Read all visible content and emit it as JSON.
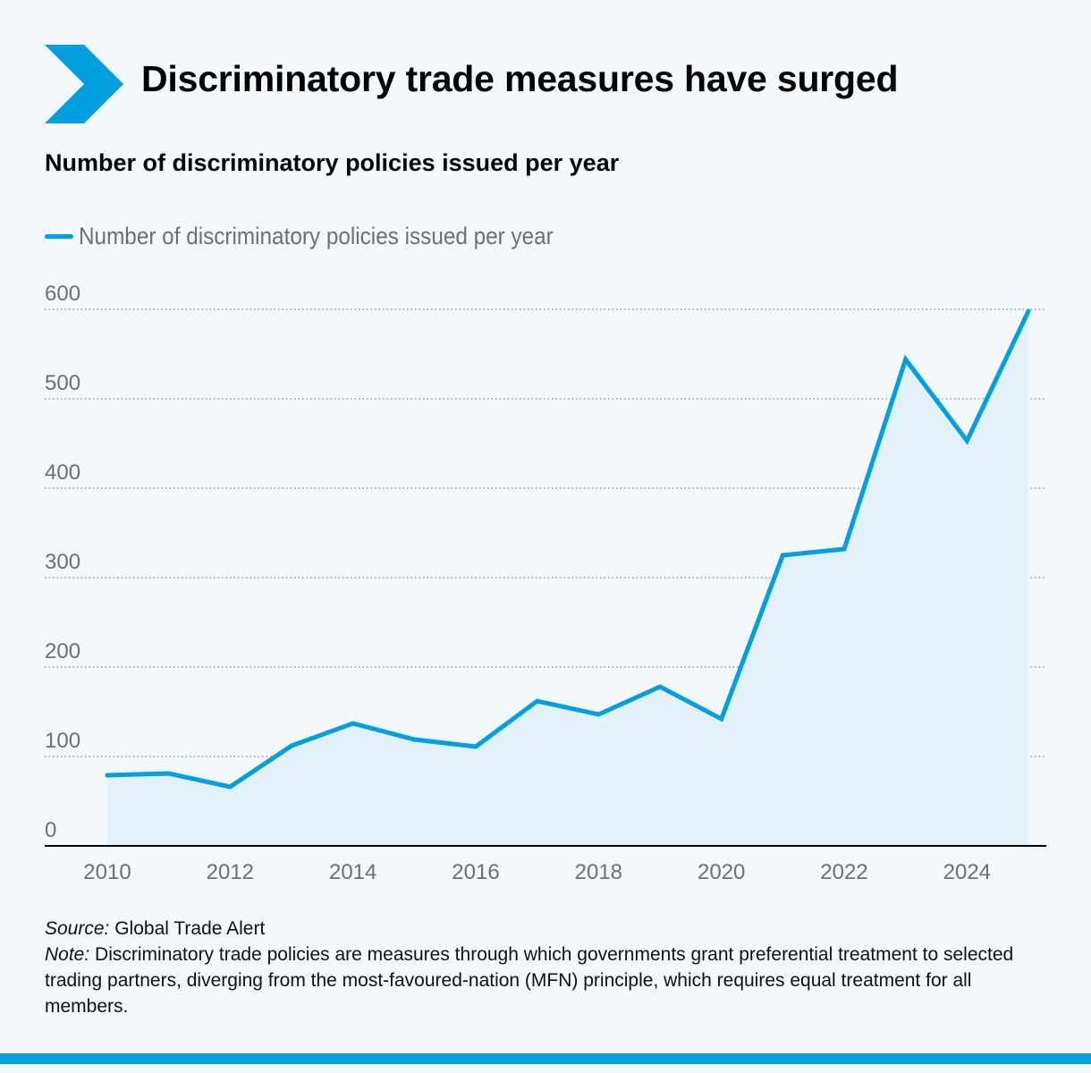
{
  "header": {
    "title": "Discriminatory trade measures have surged",
    "icon": "chevron-right-icon"
  },
  "colors": {
    "accent": "#009fdf",
    "area_fill": "#e3f1f9",
    "gridline": "#9a9a9a",
    "axis": "#000000",
    "tick_text": "#6f6f6f",
    "background": "#f3f8fc"
  },
  "chart_data": {
    "type": "area",
    "title": "Number of discriminatory policies issued per year",
    "xlabel": "",
    "ylabel": "",
    "x": [
      2010,
      2011,
      2012,
      2013,
      2014,
      2015,
      2016,
      2017,
      2018,
      2019,
      2020,
      2021,
      2022,
      2023,
      2024,
      2025
    ],
    "series": [
      {
        "name": "Number of discriminatory policies issued per year",
        "values": [
          79,
          81,
          66,
          112,
          137,
          119,
          111,
          162,
          147,
          178,
          142,
          325,
          332,
          544,
          453,
          598
        ]
      }
    ],
    "ylim": [
      0,
      600
    ],
    "yticks": [
      0,
      100,
      200,
      300,
      400,
      500,
      600
    ],
    "xticks": [
      2010,
      2012,
      2014,
      2016,
      2018,
      2020,
      2022,
      2024
    ],
    "grid": true,
    "legend": "top-left"
  },
  "footer": {
    "source_label": "Source:",
    "source_text": "Global Trade Alert",
    "note_label": "Note:",
    "note_text": "Discriminatory trade policies are measures through which governments grant preferential treatment to selected trading partners, diverging from the most-favoured-nation (MFN) principle, which requires equal treatment for all members."
  }
}
